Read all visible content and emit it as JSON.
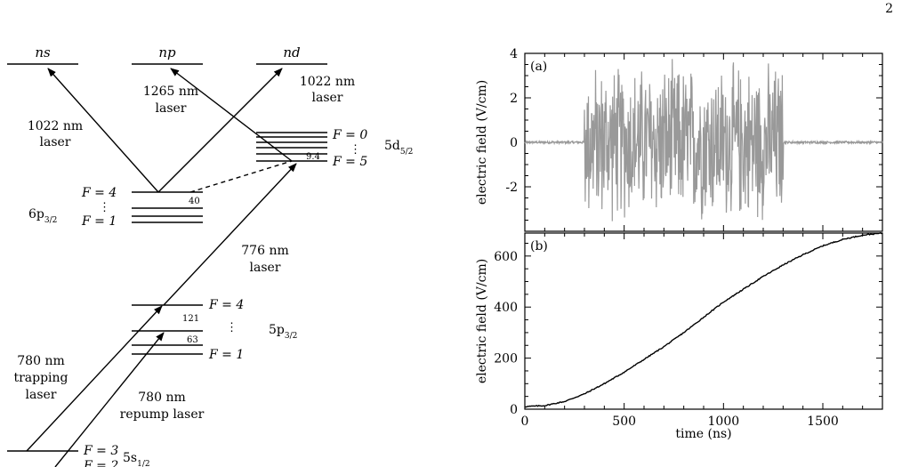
{
  "page_number": "2",
  "level_diagram": {
    "top_levels": [
      "ns",
      "np",
      "nd"
    ],
    "lasers": {
      "l1022_left": [
        "1022 nm",
        "laser"
      ],
      "l1265": [
        "1265 nm",
        "laser"
      ],
      "l1022_right": [
        "1022 nm",
        "laser"
      ],
      "l776": [
        "776 nm",
        "laser"
      ],
      "l780_trap": [
        "780 nm",
        "trapping",
        "laser"
      ],
      "l780_repump": [
        "780 nm",
        "repump laser"
      ]
    },
    "d52": {
      "state": "5d",
      "sub": "5/2",
      "f_top": "F = 0",
      "f_bottom": "F = 5",
      "split": "9.4",
      "dots": "⋮"
    },
    "p32_6": {
      "state": "6p",
      "sub": "3/2",
      "f_top": "F = 4",
      "f_bottom": "F = 1",
      "split": "40",
      "dots": "⋮"
    },
    "p32_5": {
      "state": "5p",
      "sub": "3/2",
      "f_top": "F = 4",
      "f_bottom": "F = 1",
      "split_a": "121",
      "split_b": "63",
      "dots": "⋮"
    },
    "s12": {
      "state": "5s",
      "sub": "1/2",
      "f_top": "F = 3",
      "f_bottom": "F = 2"
    }
  },
  "chart_data": [
    {
      "type": "line",
      "panel_label": "(a)",
      "ylabel": "electric field (V/cm)",
      "xlim": [
        0,
        1800
      ],
      "ylim": [
        -4,
        4
      ],
      "yticks": [
        -2,
        0,
        2,
        4
      ],
      "ytick_labels": [
        "-2",
        "0",
        "2",
        "4"
      ],
      "series": [
        {
          "color": "#999999",
          "burst_start": 300,
          "burst_end": 1300,
          "amplitude_max": 3.9,
          "baseline": 0
        }
      ]
    },
    {
      "type": "line",
      "panel_label": "(b)",
      "xlabel": "time (ns)",
      "ylabel": "electric field (V/cm)",
      "xlim": [
        0,
        1800
      ],
      "ylim": [
        0,
        690
      ],
      "xticks": [
        0,
        500,
        1000,
        1500
      ],
      "xtick_labels": [
        "0",
        "500",
        "1000",
        "1500"
      ],
      "yticks": [
        0,
        200,
        400,
        600
      ],
      "ytick_labels": [
        "0",
        "200",
        "400",
        "600"
      ],
      "series": [
        {
          "color": "#000000",
          "x": [
            0,
            100,
            200,
            300,
            400,
            500,
            600,
            700,
            800,
            900,
            1000,
            1100,
            1200,
            1300,
            1400,
            1500,
            1600,
            1700,
            1800
          ],
          "y": [
            10,
            14,
            30,
            60,
            100,
            145,
            195,
            245,
            300,
            360,
            420,
            470,
            520,
            565,
            605,
            640,
            665,
            682,
            690
          ]
        }
      ]
    }
  ]
}
